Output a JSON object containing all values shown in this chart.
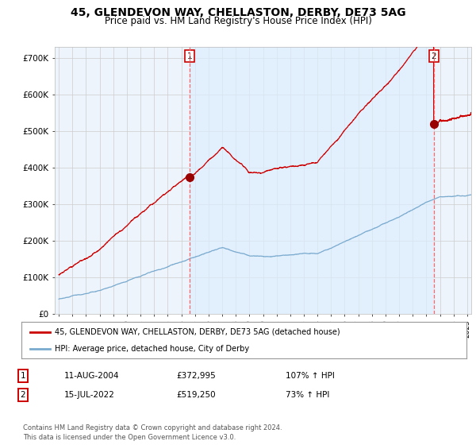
{
  "title": "45, GLENDEVON WAY, CHELLASTON, DERBY, DE73 5AG",
  "subtitle": "Price paid vs. HM Land Registry's House Price Index (HPI)",
  "title_fontsize": 10,
  "subtitle_fontsize": 8.5,
  "ylabel_ticks": [
    "£0",
    "£100K",
    "£200K",
    "£300K",
    "£400K",
    "£500K",
    "£600K",
    "£700K"
  ],
  "ytick_vals": [
    0,
    100000,
    200000,
    300000,
    400000,
    500000,
    600000,
    700000
  ],
  "ylim": [
    0,
    730000
  ],
  "xlim_start": 1994.7,
  "xlim_end": 2025.3,
  "sale1_x": 2004.6,
  "sale1_y": 372995,
  "sale2_x": 2022.54,
  "sale2_y": 519250,
  "red_line_color": "#cc0000",
  "blue_line_color": "#7aabcf",
  "shade_color": "#ddeeff",
  "grid_color": "#cccccc",
  "background_color": "#ffffff",
  "plot_bg_color": "#eef4fb",
  "legend_label_red": "45, GLENDEVON WAY, CHELLASTON, DERBY, DE73 5AG (detached house)",
  "legend_label_blue": "HPI: Average price, detached house, City of Derby",
  "table_row1": [
    "1",
    "11-AUG-2004",
    "£372,995",
    "107% ↑ HPI"
  ],
  "table_row2": [
    "2",
    "15-JUL-2022",
    "£519,250",
    "73% ↑ HPI"
  ],
  "footnote": "Contains HM Land Registry data © Crown copyright and database right 2024.\nThis data is licensed under the Open Government Licence v3.0.",
  "marker_color": "#990000",
  "marker_size": 7
}
